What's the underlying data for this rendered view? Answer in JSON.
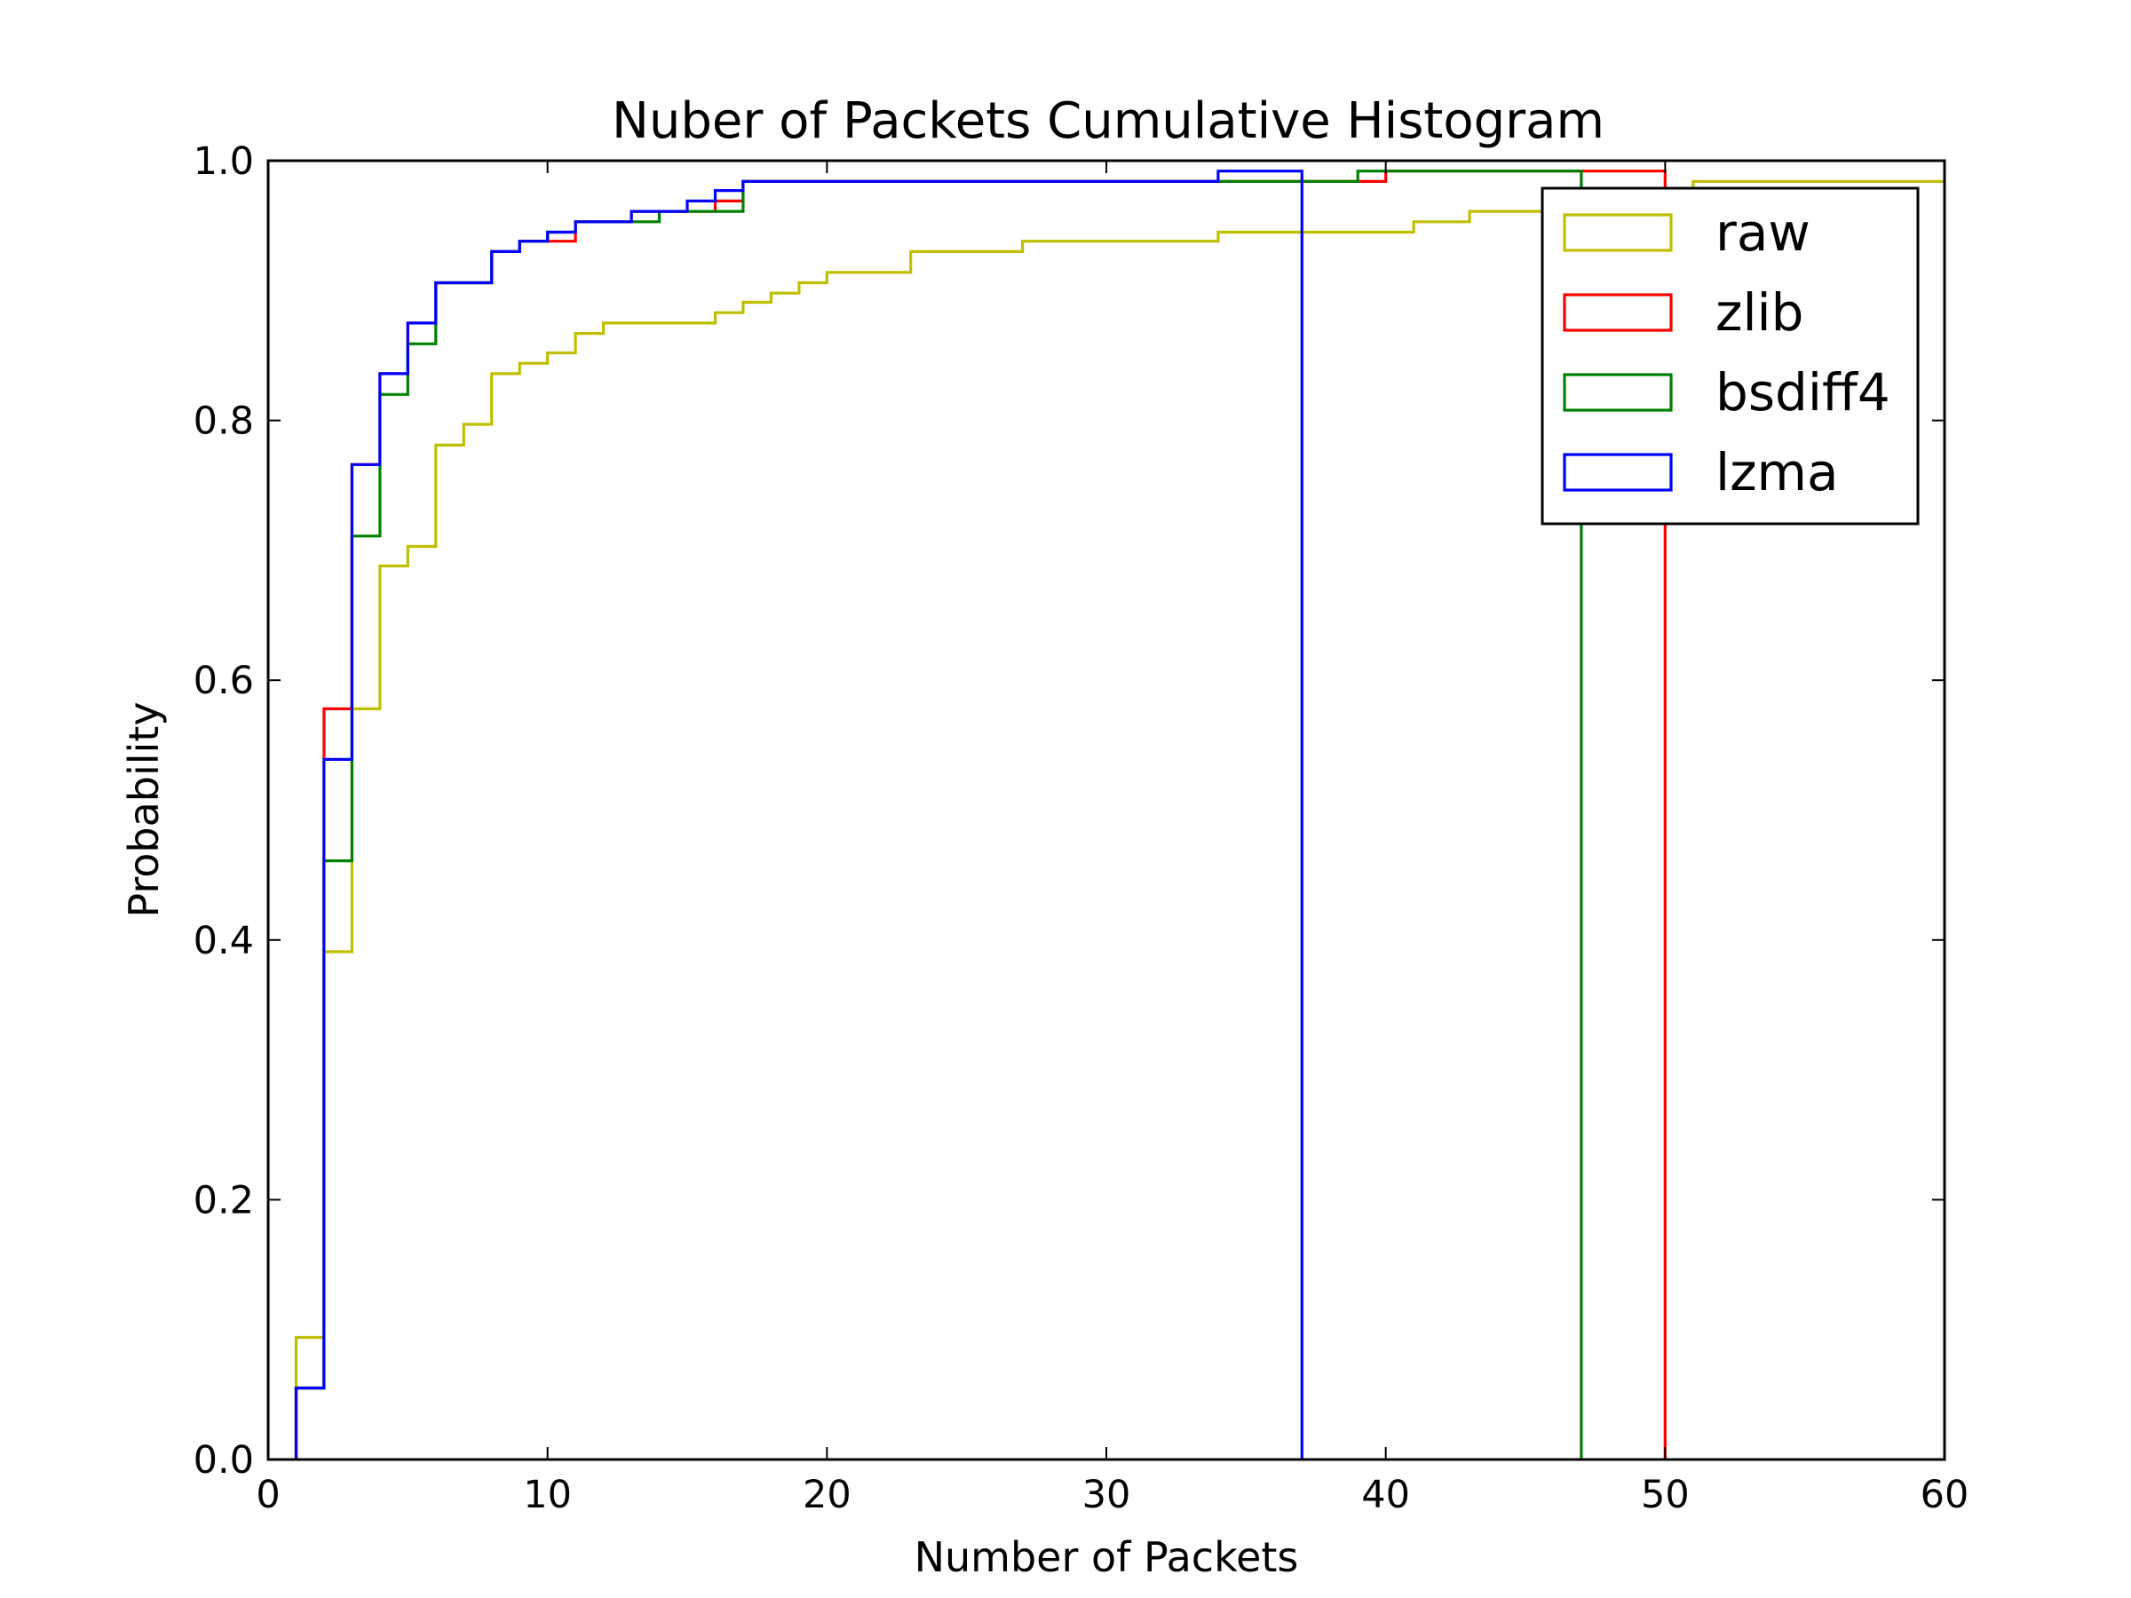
{
  "chart_data": {
    "type": "step",
    "title": "Nuber of Packets Cumulative Histogram",
    "xlabel": "Number of Packets",
    "ylabel": "Probability",
    "xlim": [
      0,
      60
    ],
    "ylim": [
      0,
      1.0
    ],
    "xticks": [
      0,
      10,
      20,
      30,
      40,
      50,
      60
    ],
    "xtick_labels": [
      "0",
      "10",
      "20",
      "30",
      "40",
      "50",
      "60"
    ],
    "yticks": [
      0.0,
      0.2,
      0.4,
      0.6,
      0.8,
      1.0
    ],
    "ytick_labels": [
      "0.0",
      "0.2",
      "0.4",
      "0.6",
      "0.8",
      "1.0"
    ],
    "grid": false,
    "legend_position": "top-right",
    "series": [
      {
        "name": "raw",
        "color": "#bfbf00",
        "steps": [
          [
            1,
            0.094
          ],
          [
            2,
            0.391
          ],
          [
            3,
            0.578
          ],
          [
            4,
            0.688
          ],
          [
            5,
            0.703
          ],
          [
            6,
            0.781
          ],
          [
            7,
            0.797
          ],
          [
            8,
            0.836
          ],
          [
            9,
            0.844
          ],
          [
            10,
            0.852
          ],
          [
            11,
            0.867
          ],
          [
            12,
            0.875
          ],
          [
            16,
            0.883
          ],
          [
            17,
            0.891
          ],
          [
            18,
            0.898
          ],
          [
            19,
            0.906
          ],
          [
            20,
            0.914
          ],
          [
            23,
            0.93
          ],
          [
            27,
            0.938
          ],
          [
            34,
            0.945
          ],
          [
            41,
            0.953
          ],
          [
            43,
            0.961
          ],
          [
            51,
            0.984
          ]
        ],
        "x_end": 60,
        "drop_at_end": false
      },
      {
        "name": "zlib",
        "color": "#ff0000",
        "steps": [
          [
            1,
            0.055
          ],
          [
            2,
            0.578
          ],
          [
            3,
            0.766
          ],
          [
            4,
            0.836
          ],
          [
            5,
            0.875
          ],
          [
            6,
            0.906
          ],
          [
            8,
            0.93
          ],
          [
            9,
            0.938
          ],
          [
            11,
            0.953
          ],
          [
            13,
            0.961
          ],
          [
            16,
            0.969
          ],
          [
            17,
            0.984
          ],
          [
            39,
            0.984
          ],
          [
            40,
            0.992
          ]
        ],
        "x_end": 50,
        "drop_at_end": true
      },
      {
        "name": "bsdiff4",
        "color": "#008000",
        "steps": [
          [
            1,
            0.055
          ],
          [
            2,
            0.461
          ],
          [
            3,
            0.711
          ],
          [
            4,
            0.82
          ],
          [
            5,
            0.859
          ],
          [
            6,
            0.906
          ],
          [
            8,
            0.93
          ],
          [
            9,
            0.938
          ],
          [
            10,
            0.945
          ],
          [
            11,
            0.953
          ],
          [
            14,
            0.961
          ],
          [
            17,
            0.984
          ],
          [
            39,
            0.992
          ]
        ],
        "x_end": 47,
        "drop_at_end": true
      },
      {
        "name": "lzma",
        "color": "#0000ff",
        "steps": [
          [
            1,
            0.055
          ],
          [
            2,
            0.539
          ],
          [
            3,
            0.766
          ],
          [
            4,
            0.836
          ],
          [
            5,
            0.875
          ],
          [
            6,
            0.906
          ],
          [
            8,
            0.93
          ],
          [
            9,
            0.938
          ],
          [
            10,
            0.945
          ],
          [
            11,
            0.953
          ],
          [
            13,
            0.961
          ],
          [
            15,
            0.969
          ],
          [
            16,
            0.977
          ],
          [
            17,
            0.984
          ],
          [
            34,
            0.992
          ]
        ],
        "x_end": 37,
        "drop_at_end": true
      }
    ]
  }
}
